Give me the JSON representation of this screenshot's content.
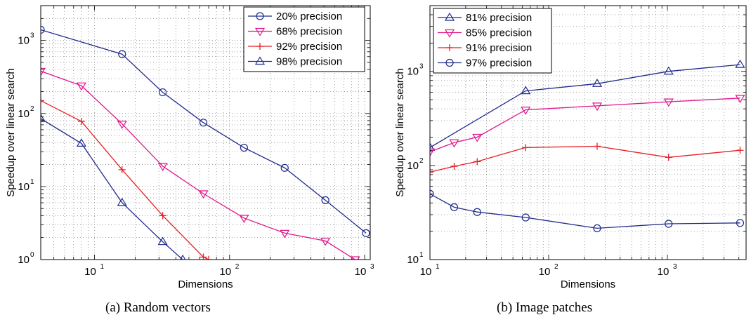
{
  "figure": {
    "captions": [
      "(a)  Random vectors",
      "(b)  Image patches"
    ]
  },
  "colors": {
    "navy": "#1f2a8a",
    "magenta": "#e0158c",
    "red": "#e61f26",
    "grid": "#8c8c8c"
  },
  "chart_data": [
    {
      "type": "line",
      "scale": "log-log",
      "title": "",
      "xlabel": "Dimensions",
      "ylabel": "Speedup over linear search",
      "xlim": [
        4,
        1100
      ],
      "ylim": [
        1,
        3000
      ],
      "x_ticks": [
        {
          "value": 10,
          "base": "10",
          "exp": "1"
        },
        {
          "value": 100,
          "base": "10",
          "exp": "2"
        },
        {
          "value": 1000,
          "base": "10",
          "exp": "3"
        }
      ],
      "y_ticks": [
        {
          "value": 1,
          "base": "10",
          "exp": "0"
        },
        {
          "value": 10,
          "base": "10",
          "exp": "1"
        },
        {
          "value": 100,
          "base": "10",
          "exp": "2"
        },
        {
          "value": 1000,
          "base": "10",
          "exp": "3"
        }
      ],
      "grid": true,
      "legend_position": "top-right",
      "series": [
        {
          "name": "20% precision",
          "color": "navy",
          "marker": "circle",
          "x": [
            4,
            16,
            32,
            64,
            128,
            256,
            512,
            1024
          ],
          "y": [
            1400,
            650,
            195,
            75,
            34,
            18,
            6.5,
            2.3
          ]
        },
        {
          "name": "68% precision",
          "color": "magenta",
          "marker": "triangle-down",
          "x": [
            4,
            8,
            16,
            32,
            64,
            128,
            256,
            512,
            850
          ],
          "y": [
            380,
            240,
            72,
            19,
            8,
            3.7,
            2.3,
            1.8,
            1
          ]
        },
        {
          "name": "92% precision",
          "color": "red",
          "marker": "plus",
          "x": [
            4,
            8,
            16,
            32,
            64,
            70
          ],
          "y": [
            150,
            78,
            17,
            4,
            1.08,
            1
          ]
        },
        {
          "name": "98% precision",
          "color": "navy",
          "marker": "triangle-up",
          "x": [
            4,
            8,
            16,
            32,
            45
          ],
          "y": [
            85,
            39,
            6,
            1.75,
            1
          ]
        }
      ]
    },
    {
      "type": "line",
      "scale": "log-log",
      "title": "",
      "xlabel": "Dimensions",
      "ylabel": "Speedup over linear search",
      "xlim": [
        10,
        4600
      ],
      "ylim": [
        10,
        5000
      ],
      "x_ticks": [
        {
          "value": 10,
          "base": "10",
          "exp": "1"
        },
        {
          "value": 100,
          "base": "10",
          "exp": "2"
        },
        {
          "value": 1000,
          "base": "10",
          "exp": "3"
        }
      ],
      "y_ticks": [
        {
          "value": 10,
          "base": "10",
          "exp": "1"
        },
        {
          "value": 100,
          "base": "10",
          "exp": "2"
        },
        {
          "value": 1000,
          "base": "10",
          "exp": "3"
        }
      ],
      "grid": true,
      "legend_position": "top-left",
      "series": [
        {
          "name": "81% precision",
          "color": "navy",
          "marker": "triangle-up",
          "x": [
            10,
            64,
            256,
            1024,
            4096
          ],
          "y": [
            155,
            620,
            740,
            1000,
            1180
          ]
        },
        {
          "name": "85% precision",
          "color": "magenta",
          "marker": "triangle-down",
          "x": [
            10,
            16,
            25,
            64,
            256,
            1024,
            4096
          ],
          "y": [
            140,
            175,
            200,
            390,
            430,
            475,
            520
          ]
        },
        {
          "name": "91% precision",
          "color": "red",
          "marker": "plus",
          "x": [
            10,
            16,
            25,
            64,
            256,
            1024,
            4096
          ],
          "y": [
            85,
            98,
            110,
            155,
            160,
            122,
            145
          ]
        },
        {
          "name": "97% precision",
          "color": "navy",
          "marker": "circle",
          "x": [
            10,
            16,
            25,
            64,
            256,
            1024,
            4096
          ],
          "y": [
            50,
            36,
            32,
            28,
            21.5,
            24,
            24.5
          ]
        }
      ]
    }
  ]
}
